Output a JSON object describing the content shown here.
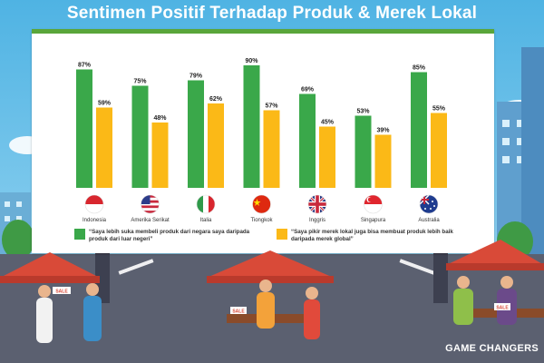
{
  "title": "Sentimen Positif Terhadap Produk & Merek Lokal",
  "chart_data": {
    "type": "bar",
    "categories": [
      "Indonesia",
      "Amerika Serikat",
      "Italia",
      "Tiongkok",
      "Inggris",
      "Singapura",
      "Australia"
    ],
    "series": [
      {
        "name": "“Saya lebih suka membeli produk dari negara saya daripada produk dari luar negeri”",
        "color": "#3aa84a",
        "values": [
          87,
          75,
          79,
          90,
          69,
          53,
          85
        ],
        "labels": [
          "87%",
          "75%",
          "79%",
          "90%",
          "69%",
          "53%",
          "85%"
        ]
      },
      {
        "name": "“Saya pikir merek lokal juga bisa membuat produk lebih baik daripada merek global”",
        "color": "#fbb917",
        "values": [
          59,
          48,
          62,
          57,
          45,
          39,
          55
        ],
        "labels": [
          "59%",
          "48%",
          "62%",
          "57%",
          "45%",
          "39%",
          "55%"
        ]
      }
    ],
    "flag_icons": [
      "indonesia-flag-icon",
      "usa-flag-icon",
      "italy-flag-icon",
      "china-flag-icon",
      "uk-flag-icon",
      "singapore-flag-icon",
      "australia-flag-icon"
    ],
    "ylim": [
      0,
      100
    ],
    "grid": false,
    "legend_position": "bottom"
  },
  "legend": {
    "item1": "“Saya lebih suka membeli produk dari negara saya daripada produk dari luar negeri”",
    "item2": "“Saya pikir merek lokal juga bisa membuat produk lebih baik daripada merek global”"
  },
  "stall_signs": [
    "SALE",
    "SALE",
    "SALE"
  ],
  "footer": "GAME CHANGERS"
}
